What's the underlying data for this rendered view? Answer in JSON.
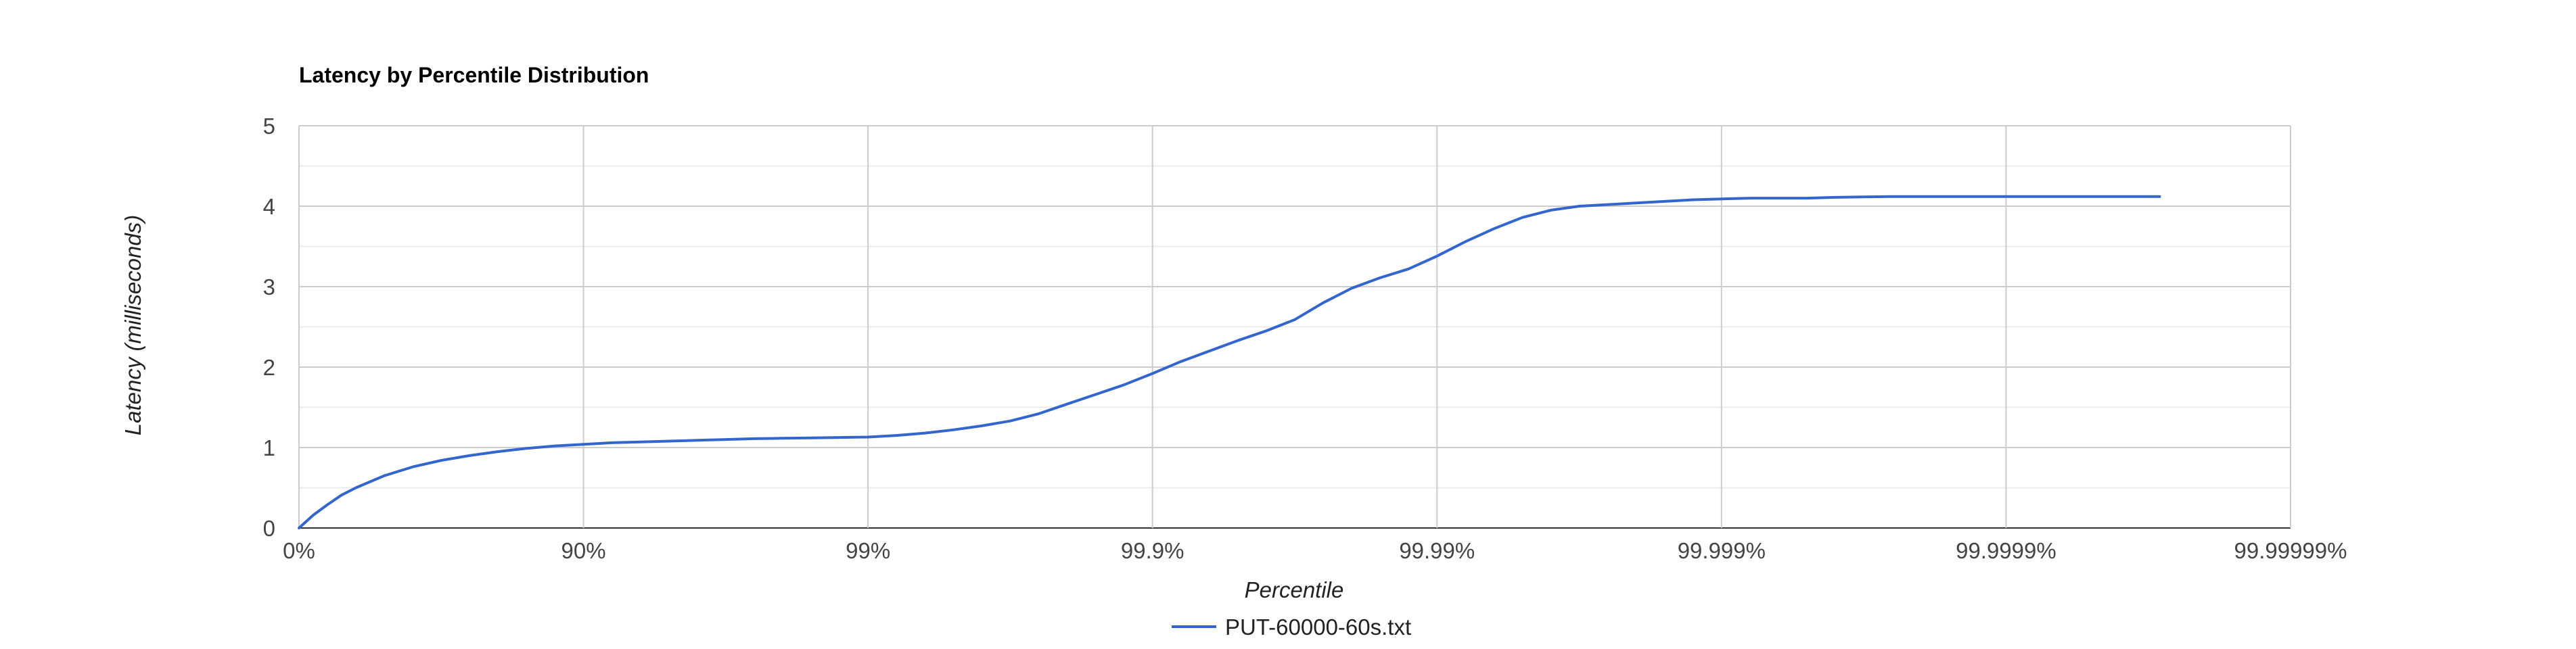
{
  "chart_data": {
    "type": "line",
    "title": "Latency by Percentile Distribution",
    "xlabel": "Percentile",
    "ylabel": "Latency (milliseconds)",
    "x_scale": "percentile-log",
    "x_ticks": [
      "0%",
      "90%",
      "99%",
      "99.9%",
      "99.99%",
      "99.999%",
      "99.9999%",
      "99.99999%"
    ],
    "xlim_nines": [
      0,
      7
    ],
    "ylim": [
      0,
      5
    ],
    "y_ticks": [
      "0",
      "1",
      "2",
      "3",
      "4",
      "5"
    ],
    "y_minor_step": 0.5,
    "grid": true,
    "legend_position": "bottom",
    "colors": {
      "series": "#3366cc"
    },
    "series": [
      {
        "name": "PUT-60000-60s.txt",
        "x_nines": [
          0,
          0.05,
          0.1,
          0.15,
          0.2,
          0.3,
          0.4,
          0.5,
          0.6,
          0.7,
          0.8,
          0.9,
          1.0,
          1.1,
          1.2,
          1.3,
          1.4,
          1.5,
          1.6,
          1.7,
          1.8,
          1.9,
          2.0,
          2.1,
          2.2,
          2.3,
          2.4,
          2.5,
          2.6,
          2.7,
          2.8,
          2.9,
          3.0,
          3.1,
          3.2,
          3.3,
          3.4,
          3.5,
          3.6,
          3.7,
          3.8,
          3.9,
          4.0,
          4.1,
          4.2,
          4.25,
          4.3,
          4.4,
          4.5,
          4.6,
          4.7,
          4.8,
          4.9,
          5.0,
          5.1,
          5.2,
          5.3,
          5.4,
          5.5,
          5.6,
          5.7,
          5.8,
          5.9,
          6.0,
          6.1,
          6.2,
          6.3,
          6.4,
          6.5,
          6.54
        ],
        "values": [
          0.0,
          0.16,
          0.29,
          0.41,
          0.5,
          0.65,
          0.76,
          0.84,
          0.9,
          0.95,
          0.99,
          1.02,
          1.04,
          1.06,
          1.07,
          1.08,
          1.09,
          1.1,
          1.11,
          1.115,
          1.12,
          1.125,
          1.13,
          1.15,
          1.18,
          1.22,
          1.27,
          1.33,
          1.42,
          1.54,
          1.66,
          1.78,
          1.92,
          2.07,
          2.2,
          2.33,
          2.45,
          2.59,
          2.8,
          2.98,
          3.11,
          3.22,
          3.38,
          3.56,
          3.72,
          3.79,
          3.86,
          3.95,
          4.0,
          4.02,
          4.04,
          4.06,
          4.08,
          4.09,
          4.1,
          4.1,
          4.1,
          4.11,
          4.115,
          4.12,
          4.12,
          4.12,
          4.12,
          4.12,
          4.12,
          4.12,
          4.12,
          4.12,
          4.12,
          4.12
        ]
      }
    ]
  }
}
